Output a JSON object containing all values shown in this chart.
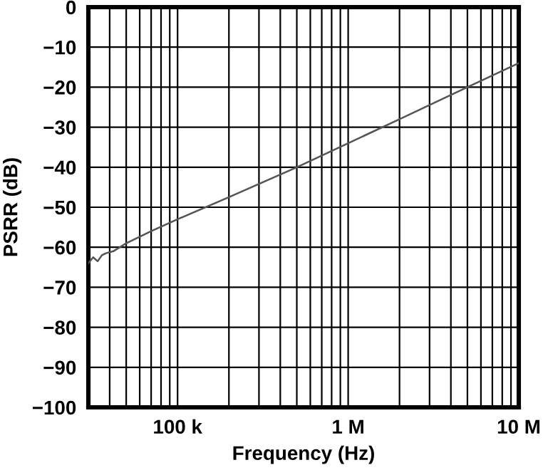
{
  "chart_data": {
    "type": "line",
    "xlabel": "Frequency (Hz)",
    "ylabel": "PSRR (dB)",
    "log": "x",
    "grid": true,
    "xlim": [
      30000,
      10000000
    ],
    "ylim": [
      -100,
      0
    ],
    "xticks": [
      {
        "value": 40000,
        "label": null
      },
      {
        "value": 50000,
        "label": null
      },
      {
        "value": 60000,
        "label": null
      },
      {
        "value": 70000,
        "label": null
      },
      {
        "value": 80000,
        "label": null
      },
      {
        "value": 90000,
        "label": null
      },
      {
        "value": 100000,
        "label": "100 k"
      },
      {
        "value": 200000,
        "label": null
      },
      {
        "value": 300000,
        "label": null
      },
      {
        "value": 400000,
        "label": null
      },
      {
        "value": 500000,
        "label": null
      },
      {
        "value": 600000,
        "label": null
      },
      {
        "value": 700000,
        "label": null
      },
      {
        "value": 800000,
        "label": null
      },
      {
        "value": 900000,
        "label": null
      },
      {
        "value": 1000000,
        "label": "1 M"
      },
      {
        "value": 2000000,
        "label": null
      },
      {
        "value": 3000000,
        "label": null
      },
      {
        "value": 4000000,
        "label": null
      },
      {
        "value": 5000000,
        "label": null
      },
      {
        "value": 6000000,
        "label": null
      },
      {
        "value": 7000000,
        "label": null
      },
      {
        "value": 8000000,
        "label": null
      },
      {
        "value": 9000000,
        "label": null
      },
      {
        "value": 10000000,
        "label": "10 M"
      }
    ],
    "yticks": [
      {
        "value": 0,
        "label": "0"
      },
      {
        "value": -10,
        "label": "−10"
      },
      {
        "value": -20,
        "label": "−20"
      },
      {
        "value": -30,
        "label": "−30"
      },
      {
        "value": -40,
        "label": "−40"
      },
      {
        "value": -50,
        "label": "−50"
      },
      {
        "value": -60,
        "label": "−60"
      },
      {
        "value": -70,
        "label": "−70"
      },
      {
        "value": -80,
        "label": "−80"
      },
      {
        "value": -90,
        "label": "−90"
      },
      {
        "value": -100,
        "label": "−100"
      }
    ],
    "series": [
      {
        "color": "#555555",
        "x": [
          30000,
          32000,
          34000,
          36000,
          38000,
          42000,
          50000,
          70000,
          100000,
          200000,
          500000,
          1000000,
          2000000,
          5000000,
          10000000
        ],
        "values": [
          -64,
          -62.5,
          -63.5,
          -62,
          -61.5,
          -61,
          -59,
          -56,
          -53,
          -47.5,
          -40,
          -34,
          -28,
          -20,
          -14
        ]
      }
    ]
  }
}
